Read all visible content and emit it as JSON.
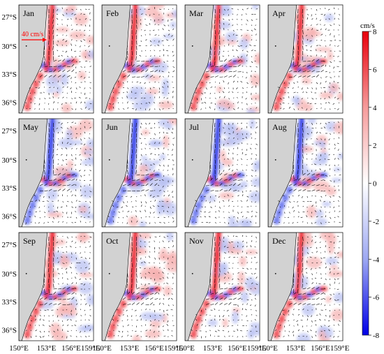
{
  "figure": {
    "months": [
      "Jan",
      "Feb",
      "Mar",
      "Apr",
      "May",
      "Jun",
      "Jul",
      "Aug",
      "Sep",
      "Oct",
      "Nov",
      "Dec"
    ],
    "lat_labels": [
      "27°S",
      "30°S",
      "33°S",
      "36°S"
    ],
    "lon_labels": [
      "150°E",
      "153°E",
      "156°E",
      "159°E"
    ],
    "reference_vector_label": "40 cm/s",
    "colorbar": {
      "unit_label": "cm/s",
      "tick_labels": [
        "8",
        "6",
        "4",
        "2",
        "0",
        "-2",
        "-4",
        "-6",
        "-8"
      ],
      "colors": {
        "max": "#e8000b",
        "mid": "#ffffff",
        "min": "#0000e6"
      }
    },
    "colors": {
      "land": "#d2d2d2",
      "vector": "#000000",
      "reference_arrow": "#ff0000"
    }
  }
}
